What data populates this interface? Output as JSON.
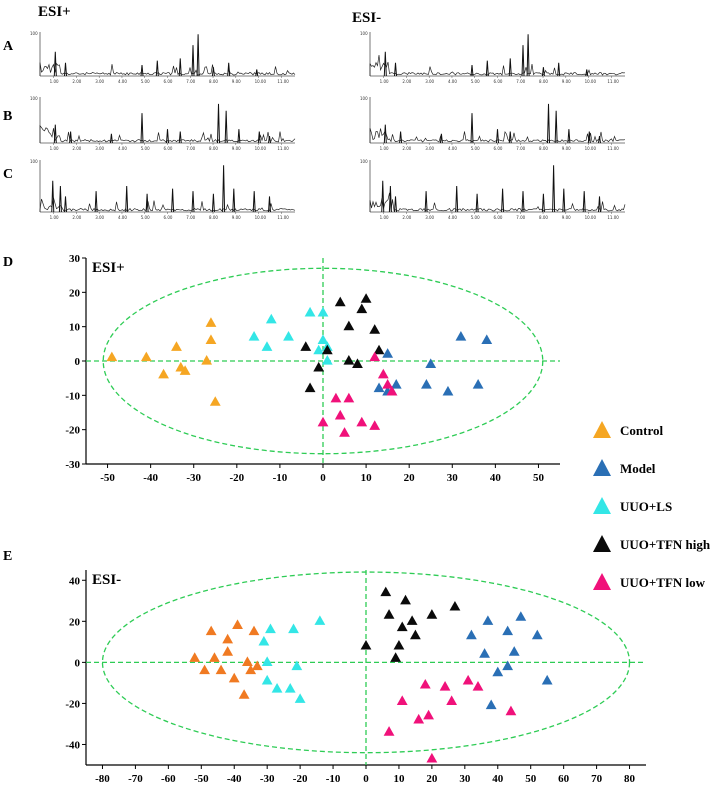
{
  "chromatograms": {
    "ion_modes": [
      "ESI+",
      "ESI-"
    ],
    "row_labels": [
      "A",
      "B",
      "C"
    ],
    "time_ticks": [
      "1.00",
      "2.00",
      "3.00",
      "4.00",
      "5.00",
      "6.00",
      "7.00",
      "8.00",
      "9.00",
      "10.00",
      "11.00"
    ],
    "y_top_label": "100"
  },
  "legend": [
    {
      "label": "Control",
      "color": "#F5A623"
    },
    {
      "label": "Model",
      "color": "#2A6FB5"
    },
    {
      "label": "UUO+LS",
      "color": "#33E6E6"
    },
    {
      "label": "UUO+TFN high",
      "color": "#0A0A0A"
    },
    {
      "label": "UUO+TFN low",
      "color": "#F0117A"
    }
  ],
  "chart_data": [
    {
      "type": "scatter",
      "panel": "D",
      "title": "ESI+",
      "xlim": [
        -55,
        55
      ],
      "ylim": [
        -30,
        30
      ],
      "x_ticks": [
        -50,
        -40,
        -30,
        -20,
        -10,
        0,
        10,
        20,
        30,
        40,
        50
      ],
      "y_ticks": [
        30,
        20,
        10,
        0,
        -10,
        -20,
        -30
      ],
      "ellipse": {
        "cx": 0,
        "cy": 0,
        "rx": 51,
        "ry": 27
      },
      "series": [
        {
          "name": "Control",
          "color": "#F5A623",
          "points": [
            [
              -49,
              1
            ],
            [
              -41,
              1
            ],
            [
              -37,
              -4
            ],
            [
              -34,
              4
            ],
            [
              -33,
              -2
            ],
            [
              -32,
              -3
            ],
            [
              -27,
              0
            ],
            [
              -26,
              6
            ],
            [
              -26,
              11
            ],
            [
              -25,
              -12
            ]
          ]
        },
        {
          "name": "UUO+LS",
          "color": "#33E6E6",
          "points": [
            [
              -16,
              7
            ],
            [
              -13,
              4
            ],
            [
              -12,
              12
            ],
            [
              -8,
              7
            ],
            [
              -3,
              14
            ],
            [
              -1,
              3
            ],
            [
              0,
              6
            ],
            [
              0,
              14
            ],
            [
              1,
              4
            ],
            [
              1,
              0
            ]
          ]
        },
        {
          "name": "UUO+TFN high",
          "color": "#0A0A0A",
          "points": [
            [
              -4,
              4
            ],
            [
              -3,
              -8
            ],
            [
              -1,
              -2
            ],
            [
              1,
              3
            ],
            [
              4,
              17
            ],
            [
              6,
              0
            ],
            [
              6,
              10
            ],
            [
              8,
              -1
            ],
            [
              9,
              15
            ],
            [
              10,
              18
            ],
            [
              12,
              9
            ],
            [
              13,
              3
            ]
          ]
        },
        {
          "name": "Model",
          "color": "#2A6FB5",
          "points": [
            [
              13,
              -8
            ],
            [
              15,
              2
            ],
            [
              15,
              -9
            ],
            [
              16,
              -9
            ],
            [
              17,
              -7
            ],
            [
              24,
              -7
            ],
            [
              25,
              -1
            ],
            [
              29,
              -9
            ],
            [
              32,
              7
            ],
            [
              36,
              -7
            ],
            [
              38,
              6
            ]
          ]
        },
        {
          "name": "UUO+TFN low",
          "color": "#F0117A",
          "points": [
            [
              3,
              -11
            ],
            [
              4,
              -16
            ],
            [
              5,
              -21
            ],
            [
              6,
              -11
            ],
            [
              9,
              -18
            ],
            [
              12,
              1
            ],
            [
              12,
              -19
            ],
            [
              14,
              -4
            ],
            [
              15,
              -7
            ],
            [
              16,
              -9
            ],
            [
              0,
              -18
            ]
          ]
        }
      ]
    },
    {
      "type": "scatter",
      "panel": "E",
      "title": "ESI-",
      "xlim": [
        -85,
        85
      ],
      "ylim": [
        -50,
        45
      ],
      "x_ticks": [
        -80,
        -70,
        -60,
        -50,
        -40,
        -30,
        -20,
        -10,
        0,
        10,
        20,
        30,
        40,
        50,
        60,
        70,
        80
      ],
      "y_ticks": [
        40,
        20,
        0,
        -20,
        -40
      ],
      "ellipse": {
        "cx": 0,
        "cy": 0,
        "rx": 80,
        "ry": 44
      },
      "series": [
        {
          "name": "Control",
          "color": "#F07A22",
          "points": [
            [
              -52,
              2
            ],
            [
              -49,
              -4
            ],
            [
              -47,
              15
            ],
            [
              -46,
              2
            ],
            [
              -44,
              -4
            ],
            [
              -42,
              11
            ],
            [
              -40,
              -8
            ],
            [
              -39,
              18
            ],
            [
              -37,
              -16
            ],
            [
              -36,
              0
            ],
            [
              -35,
              -4
            ],
            [
              -34,
              15
            ],
            [
              -33,
              -2
            ],
            [
              -42,
              5
            ]
          ]
        },
        {
          "name": "UUO+LS",
          "color": "#33E6E6",
          "points": [
            [
              -31,
              10
            ],
            [
              -30,
              0
            ],
            [
              -29,
              16
            ],
            [
              -27,
              -13
            ],
            [
              -23,
              -13
            ],
            [
              -22,
              16
            ],
            [
              -21,
              -2
            ],
            [
              -20,
              -18
            ],
            [
              -14,
              20
            ],
            [
              -30,
              -9
            ]
          ]
        },
        {
          "name": "UUO+TFN high",
          "color": "#0A0A0A",
          "points": [
            [
              0,
              8
            ],
            [
              6,
              34
            ],
            [
              7,
              23
            ],
            [
              9,
              2
            ],
            [
              10,
              8
            ],
            [
              11,
              17
            ],
            [
              12,
              30
            ],
            [
              14,
              20
            ],
            [
              15,
              13
            ],
            [
              20,
              23
            ],
            [
              27,
              27
            ]
          ]
        },
        {
          "name": "Model",
          "color": "#2A6FB5",
          "points": [
            [
              32,
              13
            ],
            [
              36,
              4
            ],
            [
              37,
              20
            ],
            [
              38,
              -21
            ],
            [
              40,
              -5
            ],
            [
              43,
              15
            ],
            [
              43,
              -2
            ],
            [
              45,
              5
            ],
            [
              47,
              22
            ],
            [
              52,
              13
            ],
            [
              55,
              -9
            ]
          ]
        },
        {
          "name": "UUO+TFN low",
          "color": "#F0117A",
          "points": [
            [
              7,
              -34
            ],
            [
              11,
              -19
            ],
            [
              16,
              -28
            ],
            [
              18,
              -11
            ],
            [
              19,
              -26
            ],
            [
              24,
              -12
            ],
            [
              26,
              -19
            ],
            [
              31,
              -9
            ],
            [
              34,
              -12
            ],
            [
              44,
              -24
            ],
            [
              20,
              -47
            ]
          ]
        }
      ]
    }
  ]
}
